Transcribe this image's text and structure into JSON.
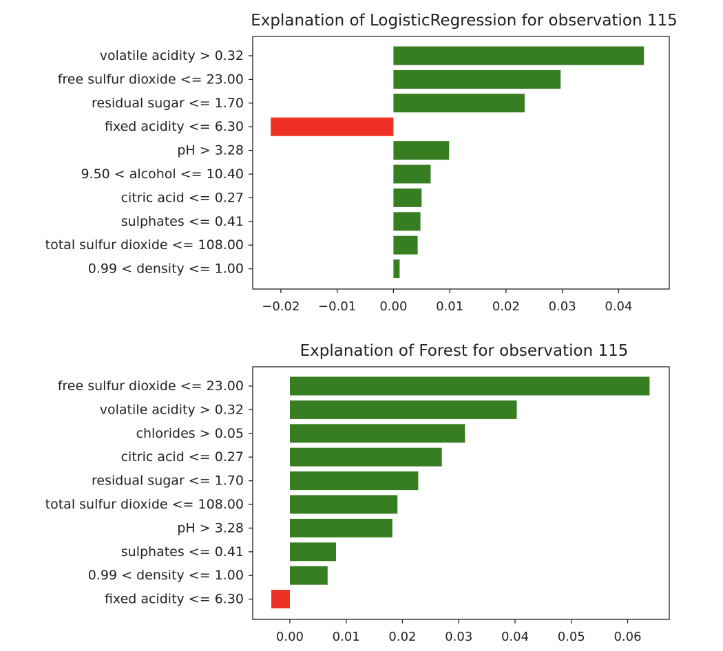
{
  "chart_data": [
    {
      "type": "bar",
      "orientation": "horizontal",
      "title": "Explanation of LogisticRegression for observation 115",
      "xlabel": "",
      "ylabel": "",
      "xlim": [
        -0.025,
        0.049
      ],
      "grid": false,
      "xticks": [
        -0.02,
        -0.01,
        0.0,
        0.01,
        0.02,
        0.03,
        0.04
      ],
      "xtick_labels": [
        "−0.02",
        "−0.01",
        "0.00",
        "0.01",
        "0.02",
        "0.03",
        "0.04"
      ],
      "categories": [
        "volatile acidity > 0.32",
        "free sulfur dioxide <= 23.00",
        "residual sugar <= 1.70",
        "fixed acidity <= 6.30",
        "pH > 3.28",
        "9.50 < alcohol <= 10.40",
        "citric acid <= 0.27",
        "sulphates <= 0.41",
        "total sulfur dioxide <= 108.00",
        "0.99 < density <= 1.00"
      ],
      "values": [
        0.0445,
        0.0297,
        0.0233,
        -0.0218,
        0.0099,
        0.0066,
        0.005,
        0.0048,
        0.0043,
        0.0011
      ],
      "colors": {
        "positive": "#377d22",
        "negative": "#ee3124"
      }
    },
    {
      "type": "bar",
      "orientation": "horizontal",
      "title": "Explanation of Forest for observation 115",
      "xlabel": "",
      "ylabel": "",
      "xlim": [
        -0.0066,
        0.0674
      ],
      "grid": false,
      "xticks": [
        0.0,
        0.01,
        0.02,
        0.03,
        0.04,
        0.05,
        0.06
      ],
      "xtick_labels": [
        "0.00",
        "0.01",
        "0.02",
        "0.03",
        "0.04",
        "0.05",
        "0.06"
      ],
      "categories": [
        "free sulfur dioxide <= 23.00",
        "volatile acidity > 0.32",
        "chlorides > 0.05",
        "citric acid <= 0.27",
        "residual sugar <= 1.70",
        "total sulfur dioxide <= 108.00",
        "pH > 3.28",
        "sulphates <= 0.41",
        "0.99 < density <= 1.00",
        "fixed acidity <= 6.30"
      ],
      "values": [
        0.0639,
        0.0403,
        0.0311,
        0.027,
        0.0228,
        0.0191,
        0.0182,
        0.0082,
        0.0067,
        -0.0033
      ],
      "colors": {
        "positive": "#377d22",
        "negative": "#ee3124"
      }
    }
  ]
}
